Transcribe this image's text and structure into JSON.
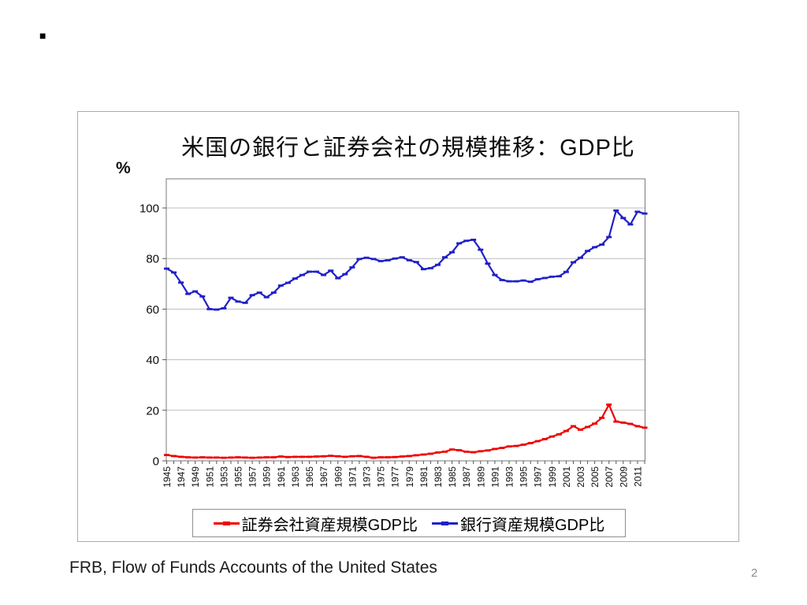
{
  "slide": {
    "bullet": "■",
    "source_caption": "FRB, Flow of Funds Accounts of the United States",
    "page_number": "2"
  },
  "chart_data": {
    "type": "line",
    "title": "米国の銀行と証券会社の規模推移：GDP比",
    "unit_label": "%",
    "xlabel": "",
    "ylabel": "%",
    "ylim": [
      0,
      100
    ],
    "yticks": [
      0,
      20,
      40,
      60,
      80,
      100
    ],
    "grid": true,
    "legend_position": "bottom",
    "years": [
      1945,
      1946,
      1947,
      1948,
      1949,
      1950,
      1951,
      1952,
      1953,
      1954,
      1955,
      1956,
      1957,
      1958,
      1959,
      1960,
      1961,
      1962,
      1963,
      1964,
      1965,
      1966,
      1967,
      1968,
      1969,
      1970,
      1971,
      1972,
      1973,
      1974,
      1975,
      1976,
      1977,
      1978,
      1979,
      1980,
      1981,
      1982,
      1983,
      1984,
      1985,
      1986,
      1987,
      1988,
      1989,
      1990,
      1991,
      1992,
      1993,
      1994,
      1995,
      1996,
      1997,
      1998,
      1999,
      2000,
      2001,
      2002,
      2003,
      2004,
      2005,
      2006,
      2007,
      2008,
      2009,
      2010,
      2011,
      2012
    ],
    "x_tick_labels": [
      "1945",
      "1947",
      "1949",
      "1951",
      "1953",
      "1955",
      "1957",
      "1959",
      "1961",
      "1963",
      "1965",
      "1967",
      "1969",
      "1971",
      "1973",
      "1975",
      "1977",
      "1979",
      "1981",
      "1983",
      "1985",
      "1987",
      "1989",
      "1991",
      "1993",
      "1995",
      "1997",
      "1999",
      "2001",
      "2003",
      "2005",
      "2007",
      "2009",
      "2011"
    ],
    "series": [
      {
        "name": "証券会社資産規模GDP比",
        "color": "#F00000",
        "values": [
          2.3,
          1.9,
          1.6,
          1.4,
          1.3,
          1.4,
          1.3,
          1.3,
          1.2,
          1.3,
          1.4,
          1.3,
          1.2,
          1.3,
          1.4,
          1.4,
          1.7,
          1.5,
          1.6,
          1.6,
          1.6,
          1.7,
          1.8,
          2.0,
          1.8,
          1.6,
          1.8,
          1.9,
          1.6,
          1.2,
          1.4,
          1.4,
          1.5,
          1.7,
          1.9,
          2.2,
          2.5,
          2.8,
          3.3,
          3.6,
          4.5,
          4.2,
          3.6,
          3.4,
          3.8,
          4.1,
          4.7,
          5.1,
          5.7,
          5.9,
          6.4,
          7.0,
          7.8,
          8.6,
          9.6,
          10.5,
          11.8,
          13.7,
          12.3,
          13.4,
          14.7,
          17.0,
          22.2,
          15.5,
          15.1,
          14.6,
          13.7,
          13.1
        ]
      },
      {
        "name": "銀行資産規模GDP比",
        "color": "#2020C8",
        "values": [
          76,
          74.5,
          70.5,
          66,
          67,
          65,
          60,
          59.8,
          60.3,
          64.5,
          63,
          62.5,
          65.5,
          66.5,
          64.7,
          66.5,
          69.3,
          70.4,
          72.1,
          73.5,
          74.8,
          74.8,
          73.5,
          75.2,
          72.2,
          73.8,
          76.5,
          79.8,
          80.3,
          79.8,
          79,
          79.3,
          80,
          80.5,
          79.3,
          78.6,
          75.8,
          76.2,
          77.5,
          80.5,
          82.5,
          86,
          87,
          87.4,
          83.5,
          78,
          73.5,
          71.5,
          71,
          71,
          71.3,
          70.8,
          71.8,
          72.3,
          72.8,
          73,
          74.7,
          78.5,
          80.3,
          83,
          84.5,
          85.5,
          88.5,
          99,
          96,
          93.5,
          98.5,
          97.8
        ]
      }
    ]
  }
}
